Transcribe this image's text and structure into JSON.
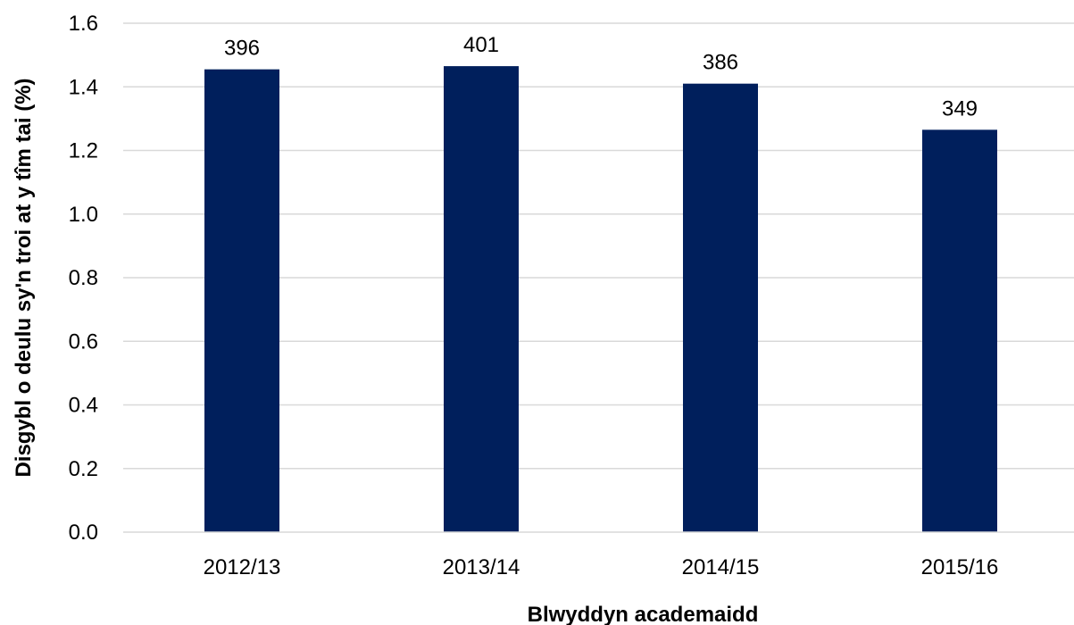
{
  "chart_data": {
    "type": "bar",
    "categories": [
      "2012/13",
      "2013/14",
      "2014/15",
      "2015/16"
    ],
    "values": [
      1.455,
      1.465,
      1.41,
      1.265
    ],
    "data_labels": [
      "396",
      "401",
      "386",
      "349"
    ],
    "xlabel": "Blwyddyn academaidd",
    "ylabel": "Disgybl o deulu sy'n troi at y tîm tai (%)",
    "ylim": [
      0,
      1.6
    ],
    "yticks": [
      "0.0",
      "0.2",
      "0.4",
      "0.6",
      "0.8",
      "1.0",
      "1.2",
      "1.4",
      "1.6"
    ],
    "grid": true,
    "legend": "none",
    "bar_color": "#001f5c"
  }
}
